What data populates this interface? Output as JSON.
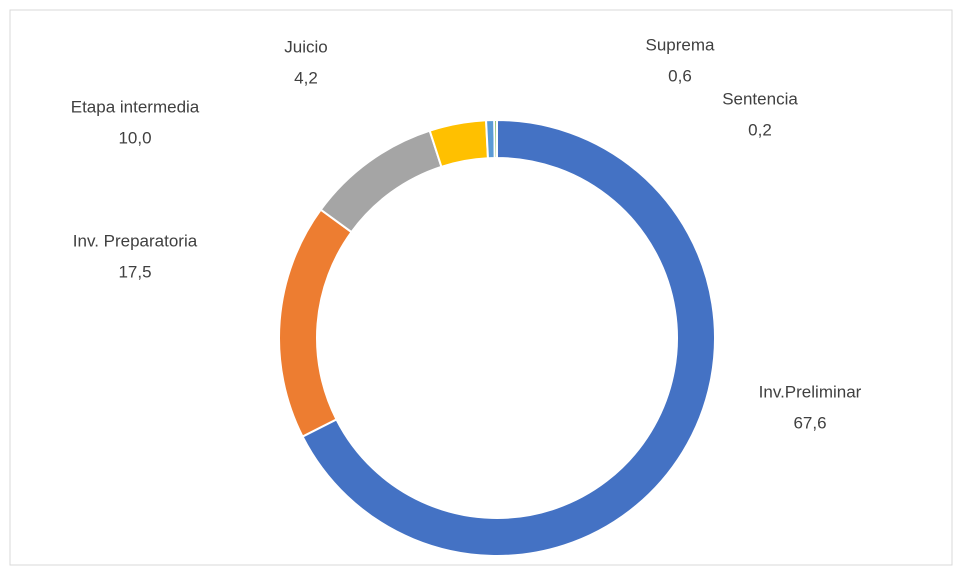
{
  "chart_data": {
    "type": "donut",
    "categories": [
      "Inv.Preliminar",
      "Inv. Preparatoria",
      "Etapa intermedia",
      "Juicio",
      "Suprema",
      "Sentencia"
    ],
    "values": [
      67.6,
      17.5,
      10.0,
      4.2,
      0.6,
      0.2
    ],
    "value_labels": [
      "67,6",
      "17,5",
      "10,0",
      "4,2",
      "0,6",
      "0,2"
    ],
    "colors": [
      "#4472c4",
      "#ed7d31",
      "#a5a5a5",
      "#ffc000",
      "#5b9bd5",
      "#70ad47"
    ]
  }
}
